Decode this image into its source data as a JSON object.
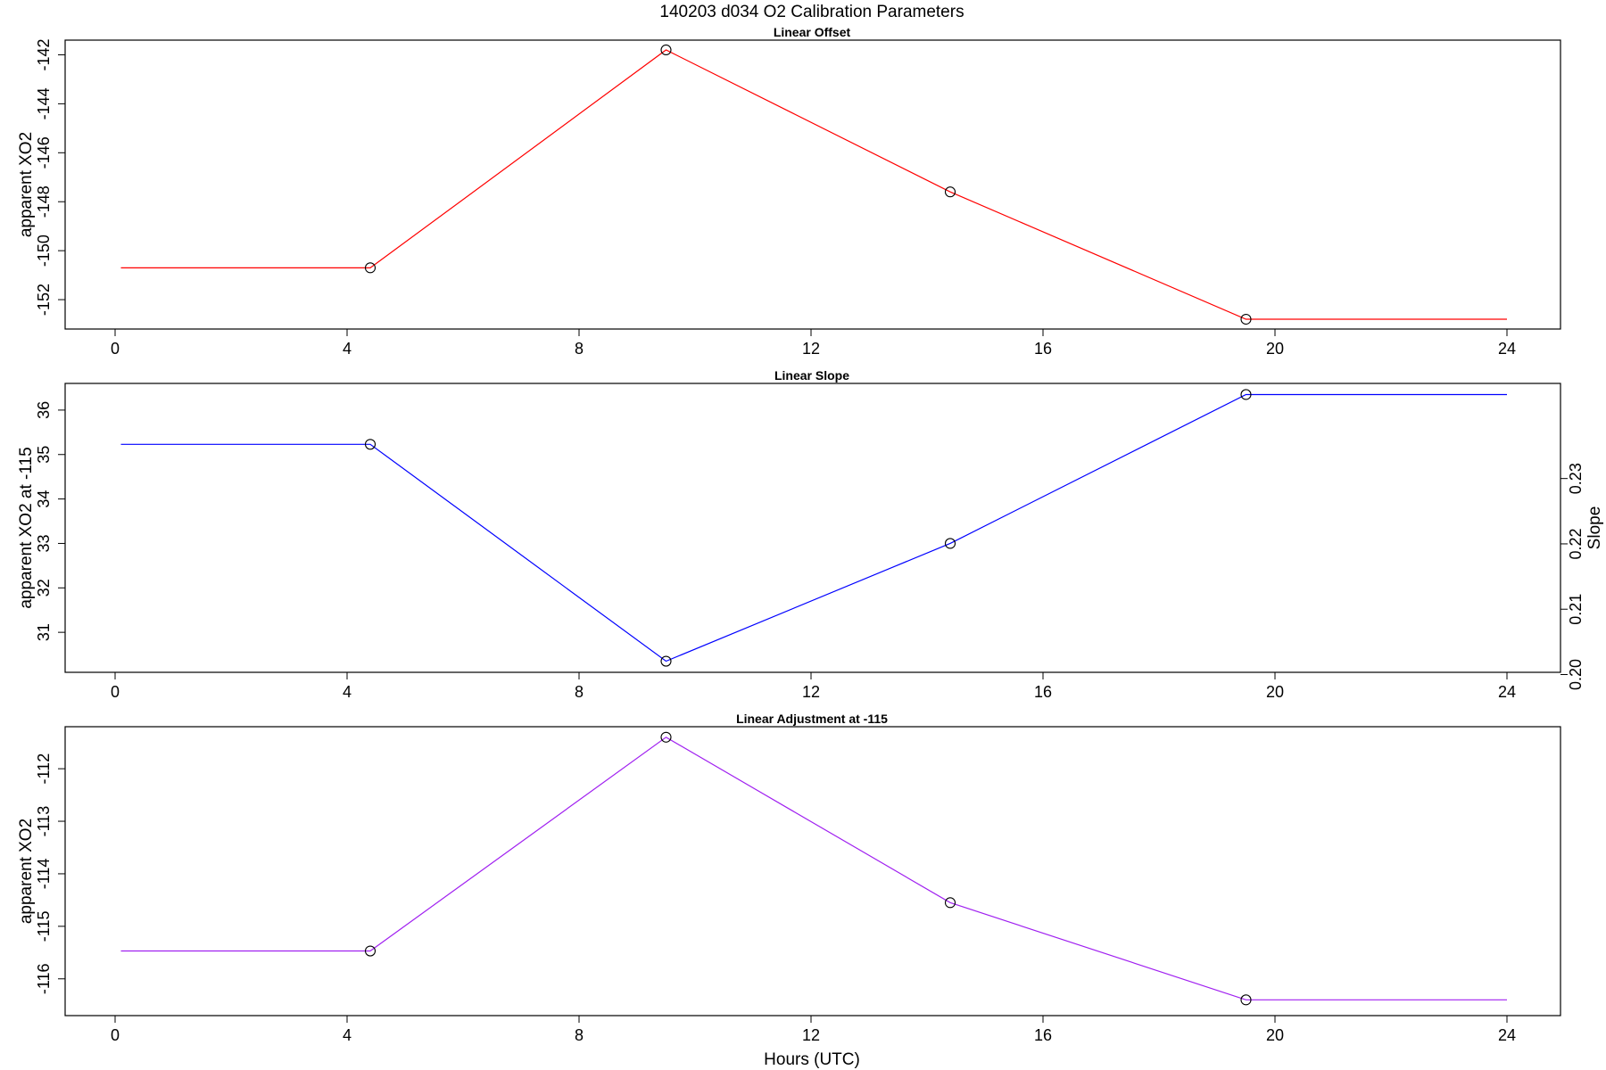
{
  "figure": {
    "title": "140203   d034   O2 Calibration Parameters",
    "xlabel": "Hours (UTC)"
  },
  "chart_data": [
    {
      "type": "line",
      "title": "Linear Offset",
      "xlabel": "",
      "ylabel": "apparent XO2",
      "xlim": [
        0,
        24
      ],
      "ylim": [
        -153.2,
        -141.4
      ],
      "xticks": [
        "0",
        "4",
        "8",
        "12",
        "16",
        "20",
        "24"
      ],
      "yticks": [
        "-142",
        "-144",
        "-146",
        "-148",
        "-150",
        "-152"
      ],
      "grid": false,
      "series": [
        {
          "color": "#ff0000",
          "line": {
            "x": [
              0.1,
              4.4,
              9.5,
              14.4,
              19.5,
              24.0
            ],
            "y": [
              -150.7,
              -150.7,
              -141.8,
              -147.6,
              -152.8,
              -152.8
            ]
          },
          "markers": {
            "x": [
              4.4,
              9.5,
              14.4,
              19.5
            ],
            "y": [
              -150.7,
              -141.8,
              -147.6,
              -152.8
            ]
          }
        }
      ]
    },
    {
      "type": "line",
      "title": "Linear Slope",
      "xlabel": "",
      "ylabel": "apparent XO2 at -115",
      "ylabel_right": "Slope",
      "xlim": [
        0,
        24
      ],
      "ylim": [
        30.1,
        36.6
      ],
      "xticks": [
        "0",
        "4",
        "8",
        "12",
        "16",
        "20",
        "24"
      ],
      "yticks": [
        "31",
        "32",
        "33",
        "34",
        "35",
        "36"
      ],
      "yticks_right": [
        "0.20",
        "0.21",
        "0.22",
        "0.23"
      ],
      "yticks_right_at": [
        30.05,
        31.52,
        32.99,
        34.46
      ],
      "grid": false,
      "series": [
        {
          "color": "#0000ff",
          "line": {
            "x": [
              0.1,
              4.4,
              9.5,
              14.4,
              19.5,
              24.0
            ],
            "y": [
              35.23,
              35.23,
              30.35,
              33.0,
              36.35,
              36.35
            ]
          },
          "markers": {
            "x": [
              4.4,
              9.5,
              14.4,
              19.5
            ],
            "y": [
              35.23,
              30.35,
              33.0,
              36.35
            ]
          }
        }
      ]
    },
    {
      "type": "line",
      "title": "Linear Adjustment at -115",
      "xlabel": "Hours (UTC)",
      "ylabel": "apparent XO2",
      "xlim": [
        0,
        24
      ],
      "ylim": [
        -116.7,
        -111.2
      ],
      "xticks": [
        "0",
        "4",
        "8",
        "12",
        "16",
        "20",
        "24"
      ],
      "yticks": [
        "-112",
        "-113",
        "-114",
        "-115",
        "-116"
      ],
      "grid": false,
      "series": [
        {
          "color": "#a020f0",
          "line": {
            "x": [
              0.1,
              4.4,
              9.5,
              14.4,
              19.5,
              24.0
            ],
            "y": [
              -115.47,
              -115.47,
              -111.4,
              -114.55,
              -116.4,
              -116.4
            ]
          },
          "markers": {
            "x": [
              4.4,
              9.5,
              14.4,
              19.5
            ],
            "y": [
              -115.47,
              -111.4,
              -114.55,
              -116.4
            ]
          }
        }
      ]
    }
  ]
}
